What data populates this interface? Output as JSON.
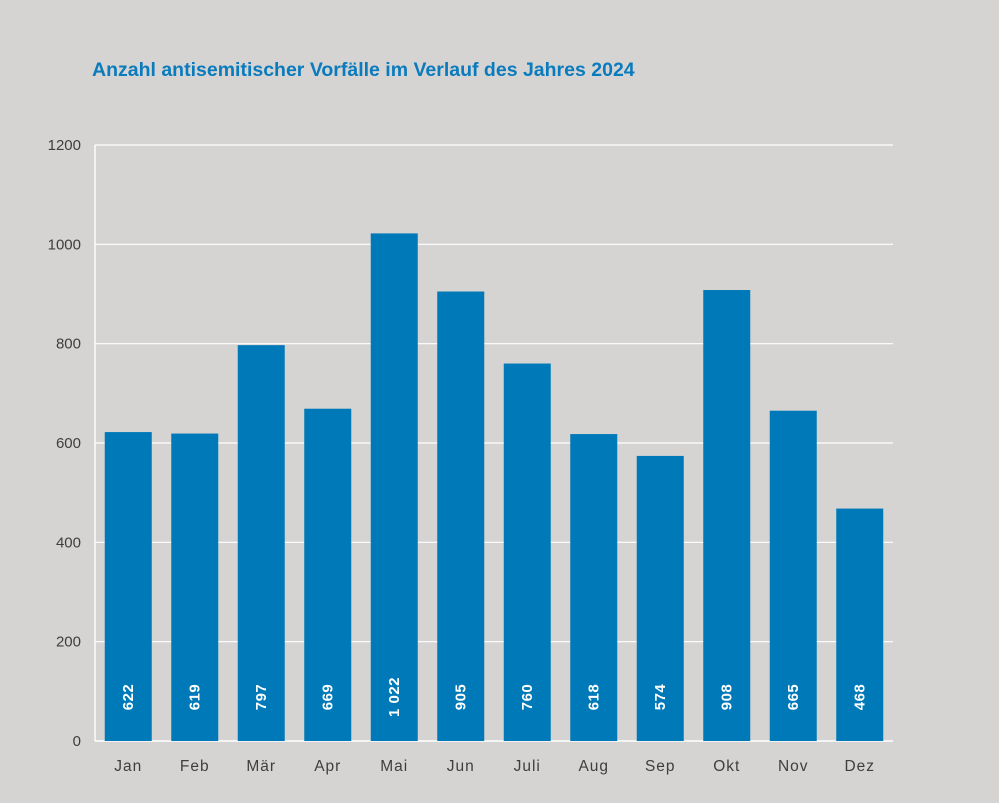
{
  "chart_data": {
    "type": "bar",
    "title": "Anzahl antisemitischer Vorfälle im Verlauf des Jahres 2024",
    "categories": [
      "Jan",
      "Feb",
      "Mär",
      "Apr",
      "Mai",
      "Jun",
      "Juli",
      "Aug",
      "Sep",
      "Okt",
      "Nov",
      "Dez"
    ],
    "values": [
      622,
      619,
      797,
      669,
      1022,
      905,
      760,
      618,
      574,
      908,
      665,
      468
    ],
    "value_labels": [
      "622",
      "619",
      "797",
      "669",
      "1 022",
      "905",
      "760",
      "618",
      "574",
      "908",
      "665",
      "468"
    ],
    "ylim": [
      0,
      1200
    ],
    "yticks": [
      0,
      200,
      400,
      600,
      800,
      1000,
      1200
    ],
    "ytick_labels": [
      "0",
      "200",
      "400",
      "600",
      "800",
      "1000",
      "1200"
    ],
    "xlabel": "",
    "ylabel": "",
    "grid": true,
    "colors": {
      "bar": "#0079b8",
      "title": "#0a7bbd",
      "background": "#d6d4d2",
      "grid": "#ffffff",
      "axis_text": "#3e3e3e"
    }
  }
}
